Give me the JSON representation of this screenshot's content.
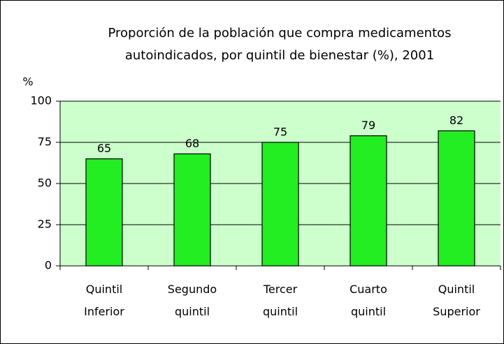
{
  "chart_data": {
    "type": "bar",
    "title": "Proporción de la población que compra medicamentos autoindicados, por quintil de bienestar (%), 2001",
    "y_label": "%",
    "categories": [
      "Quintil Inferior",
      "Segundo quintil",
      "Tercer quintil",
      "Cuarto quintil",
      "Quintil Superior"
    ],
    "values": [
      65,
      68,
      75,
      79,
      82
    ],
    "color": "#22ee22",
    "background": "#ccffcc",
    "ylim": [
      0,
      100
    ],
    "yticks": [
      0,
      25,
      50,
      75,
      100
    ],
    "grid": true
  }
}
